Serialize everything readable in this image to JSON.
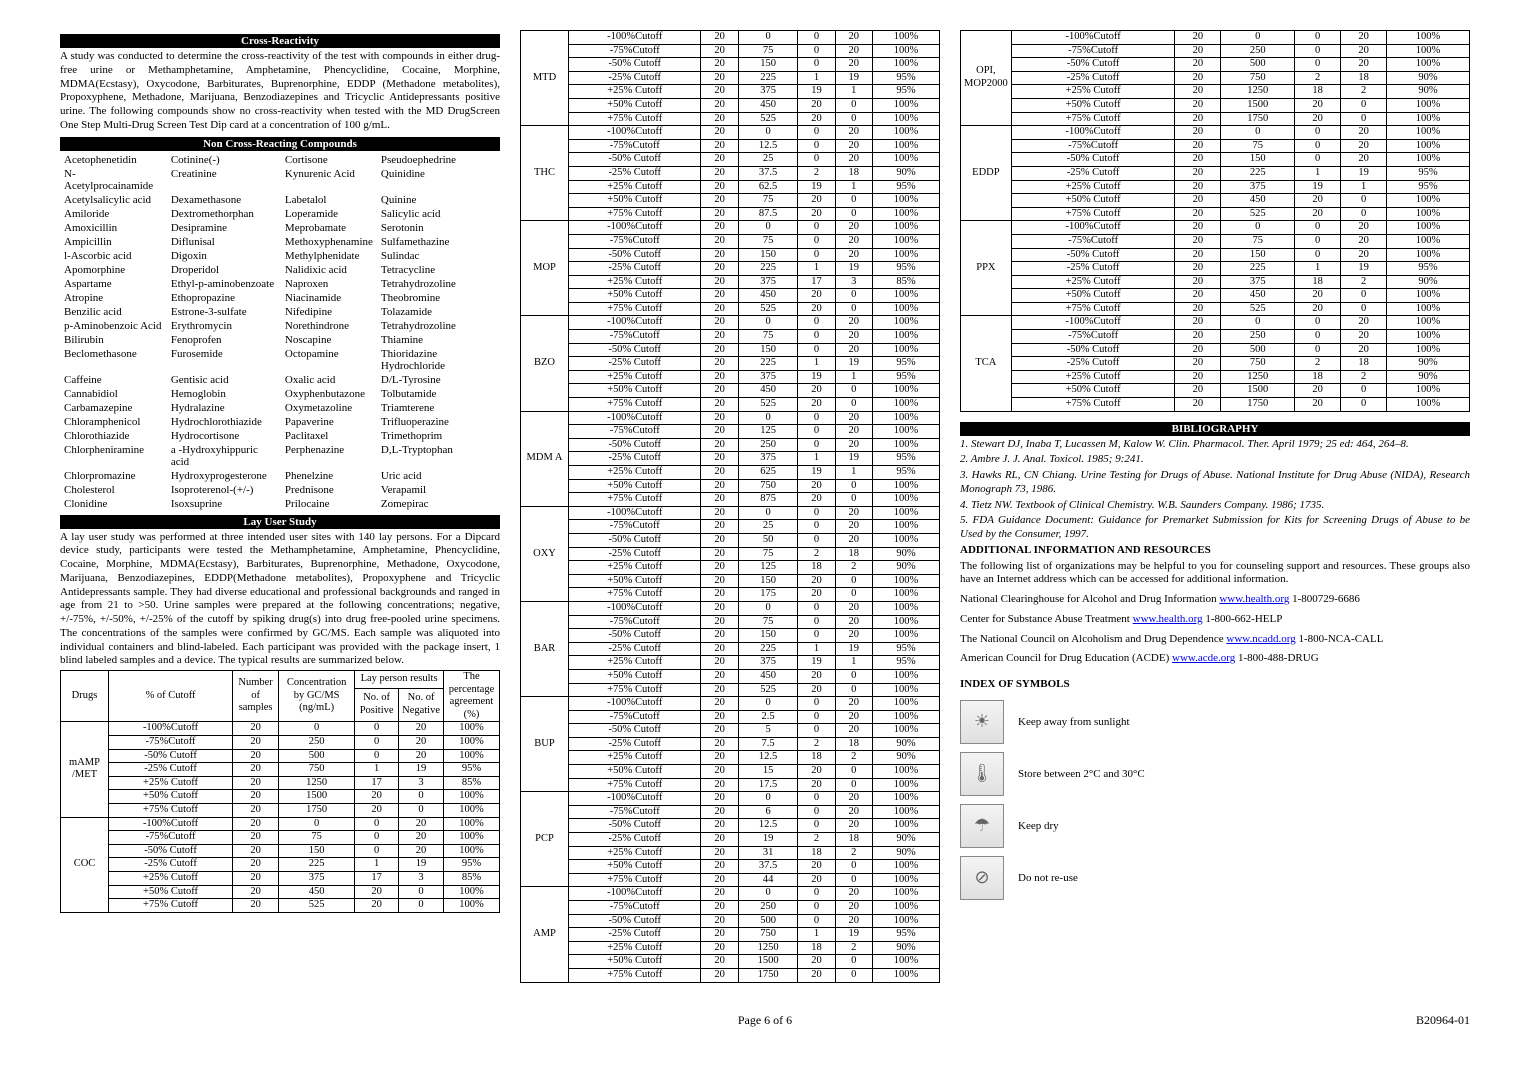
{
  "header": {
    "cross": "Cross-Reactivity",
    "cross_text": "A study was conducted to determine the cross-reactivity of the test with compounds in either drug-free urine or Methamphetamine, Amphetamine, Phencyclidine, Cocaine, Morphine, MDMA(Ecstasy), Oxycodone, Barbiturates, Buprenorphine, EDDP (Methadone metabolites), Propoxyphene, Methadone, Marijuana, Benzodiazepines and Tricyclic Antidepressants positive urine. The following compounds show no cross-reactivity when tested with the MD DrugScreen One Step Multi-Drug Screen Test Dip card at a concentration of 100 g/mL.",
    "ncr": "Non Cross-Reacting Compounds",
    "lay": "Lay User Study",
    "lay_text": "A lay user study was performed at three intended user sites with 140 lay persons. For a Dipcard device study, participants were tested the Methamphetamine, Amphetamine, Phencyclidine, Cocaine, Morphine, MDMA(Ecstasy), Barbiturates, Buprenorphine, Methadone, Oxycodone, Marijuana, Benzodiazepines, EDDP(Methadone metabolites), Propoxyphene and Tricyclic Antidepressants sample. They had diverse educational and professional backgrounds and ranged in age from 21 to >50. Urine samples were prepared at the following concentrations; negative, +/-75%, +/-50%, +/-25% of the cutoff by spiking drug(s) into drug free-pooled urine specimens.   The concentrations of the samples were confirmed by GC/MS.   Each sample was aliquoted into individual containers and blind-labeled.   Each participant was provided with the package insert, 1 blind labeled samples and a device.   The typical results are summarized below.",
    "bib": "BIBLIOGRAPHY"
  },
  "ncr_compounds": [
    [
      "Acetophenetidin",
      "Cotinine(-)",
      "Cortisone",
      "Pseudoephedrine"
    ],
    [
      "N-Acetylprocainamide",
      "Creatinine",
      "Kynurenic Acid",
      "Quinidine"
    ],
    [
      "Acetylsalicylic acid",
      "Dexamethasone",
      "Labetalol",
      "Quinine"
    ],
    [
      "Amiloride",
      "Dextromethorphan",
      "Loperamide",
      "Salicylic acid"
    ],
    [
      "Amoxicillin",
      "Desipramine",
      "Meprobamate",
      "Serotonin"
    ],
    [
      "Ampicillin",
      "Diflunisal",
      "Methoxyphenamine",
      "Sulfamethazine"
    ],
    [
      "l-Ascorbic acid",
      "Digoxin",
      "Methylphenidate",
      "Sulindac"
    ],
    [
      "Apomorphine",
      "Droperidol",
      "Nalidixic acid",
      "Tetracycline"
    ],
    [
      "Aspartame",
      "Ethyl-p-aminobenzoate",
      "Naproxen",
      "Tetrahydrozoline"
    ],
    [
      "Atropine",
      "Ethopropazine",
      "Niacinamide",
      "Theobromine"
    ],
    [
      "Benzilic acid",
      "Estrone-3-sulfate",
      "Nifedipine",
      "Tolazamide"
    ],
    [
      "p-Aminobenzoic Acid",
      "Erythromycin",
      "Norethindrone",
      "Tetrahydrozoline"
    ],
    [
      "Bilirubin",
      "Fenoprofen",
      "Noscapine",
      "Thiamine"
    ],
    [
      "Beclomethasone",
      "Furosemide",
      "Octopamine",
      "Thioridazine Hydrochloride"
    ],
    [
      "Caffeine",
      "Gentisic acid",
      "Oxalic acid",
      "D/L-Tyrosine"
    ],
    [
      "Cannabidiol",
      "Hemoglobin",
      "Oxyphenbutazone",
      "Tolbutamide"
    ],
    [
      "Carbamazepine",
      "Hydralazine",
      "Oxymetazoline",
      "Triamterene"
    ],
    [
      "Chloramphenicol",
      "Hydrochlorothiazide",
      "Papaverine",
      "Trifluoperazine"
    ],
    [
      "Chlorothiazide",
      "Hydrocortisone",
      "Paclitaxel",
      "Trimethoprim"
    ],
    [
      "Chlorpheniramine",
      "a -Hydroxyhippuric acid",
      "Perphenazine",
      "D,L-Tryptophan"
    ],
    [
      "Chlorpromazine",
      "Hydroxyprogesterone",
      "Phenelzine",
      "Uric acid"
    ],
    [
      "Cholesterol",
      "Isoproterenol-(+/-)",
      "Prednisone",
      "Verapamil"
    ],
    [
      "Clonidine",
      "Isoxsuprine",
      "Prilocaine",
      "Zomepirac"
    ]
  ],
  "table_headers": {
    "drugs": "Drugs",
    "pct": "% of Cutoff",
    "num_samples": "Number of samples",
    "conc": "Concentration by GC/MS (ng/mL)",
    "lay_results": "Lay person results",
    "pos": "No. of Positive",
    "neg": "No. of Negative",
    "agree": "The percentage agreement (%)"
  },
  "cutoff_labels": [
    "-100%Cutoff",
    "-75%Cutoff",
    "-50% Cutoff",
    "-25% Cutoff",
    "+25% Cutoff",
    "+50% Cutoff",
    "+75% Cutoff"
  ],
  "drug_blocks_col1": [
    {
      "name": "mAMP /MET",
      "rows": [
        [
          20,
          0,
          0,
          20,
          "100%"
        ],
        [
          20,
          250,
          0,
          20,
          "100%"
        ],
        [
          20,
          500,
          0,
          20,
          "100%"
        ],
        [
          20,
          750,
          1,
          19,
          "95%"
        ],
        [
          20,
          1250,
          17,
          3,
          "85%"
        ],
        [
          20,
          1500,
          20,
          0,
          "100%"
        ],
        [
          20,
          1750,
          20,
          0,
          "100%"
        ]
      ]
    },
    {
      "name": "COC",
      "rows": [
        [
          20,
          0,
          0,
          20,
          "100%"
        ],
        [
          20,
          75,
          0,
          20,
          "100%"
        ],
        [
          20,
          150,
          0,
          20,
          "100%"
        ],
        [
          20,
          225,
          1,
          19,
          "95%"
        ],
        [
          20,
          375,
          17,
          3,
          "85%"
        ],
        [
          20,
          450,
          20,
          0,
          "100%"
        ],
        [
          20,
          525,
          20,
          0,
          "100%"
        ]
      ]
    }
  ],
  "drug_blocks_col2": [
    {
      "name": "MTD",
      "rows": [
        [
          20,
          0,
          0,
          20,
          "100%"
        ],
        [
          20,
          75,
          0,
          20,
          "100%"
        ],
        [
          20,
          150,
          0,
          20,
          "100%"
        ],
        [
          20,
          225,
          1,
          19,
          "95%"
        ],
        [
          20,
          375,
          19,
          1,
          "95%"
        ],
        [
          20,
          450,
          20,
          0,
          "100%"
        ],
        [
          20,
          525,
          20,
          0,
          "100%"
        ]
      ]
    },
    {
      "name": "THC",
      "rows": [
        [
          20,
          0,
          0,
          20,
          "100%"
        ],
        [
          20,
          12.5,
          0,
          20,
          "100%"
        ],
        [
          20,
          25,
          0,
          20,
          "100%"
        ],
        [
          20,
          37.5,
          2,
          18,
          "90%"
        ],
        [
          20,
          62.5,
          19,
          1,
          "95%"
        ],
        [
          20,
          75,
          20,
          0,
          "100%"
        ],
        [
          20,
          87.5,
          20,
          0,
          "100%"
        ]
      ]
    },
    {
      "name": "MOP",
      "rows": [
        [
          20,
          0,
          0,
          20,
          "100%"
        ],
        [
          20,
          75,
          0,
          20,
          "100%"
        ],
        [
          20,
          150,
          0,
          20,
          "100%"
        ],
        [
          20,
          225,
          1,
          19,
          "95%"
        ],
        [
          20,
          375,
          17,
          3,
          "85%"
        ],
        [
          20,
          450,
          20,
          0,
          "100%"
        ],
        [
          20,
          525,
          20,
          0,
          "100%"
        ]
      ]
    },
    {
      "name": "BZO",
      "rows": [
        [
          20,
          0,
          0,
          20,
          "100%"
        ],
        [
          20,
          75,
          0,
          20,
          "100%"
        ],
        [
          20,
          150,
          0,
          20,
          "100%"
        ],
        [
          20,
          225,
          1,
          19,
          "95%"
        ],
        [
          20,
          375,
          19,
          1,
          "95%"
        ],
        [
          20,
          450,
          20,
          0,
          "100%"
        ],
        [
          20,
          525,
          20,
          0,
          "100%"
        ]
      ]
    },
    {
      "name": "MDM A",
      "rows": [
        [
          20,
          0,
          0,
          20,
          "100%"
        ],
        [
          20,
          125,
          0,
          20,
          "100%"
        ],
        [
          20,
          250,
          0,
          20,
          "100%"
        ],
        [
          20,
          375,
          1,
          19,
          "95%"
        ],
        [
          20,
          625,
          19,
          1,
          "95%"
        ],
        [
          20,
          750,
          20,
          0,
          "100%"
        ],
        [
          20,
          875,
          20,
          0,
          "100%"
        ]
      ]
    },
    {
      "name": "OXY",
      "rows": [
        [
          20,
          0,
          0,
          20,
          "100%"
        ],
        [
          20,
          25,
          0,
          20,
          "100%"
        ],
        [
          20,
          50,
          0,
          20,
          "100%"
        ],
        [
          20,
          75,
          2,
          18,
          "90%"
        ],
        [
          20,
          125,
          18,
          2,
          "90%"
        ],
        [
          20,
          150,
          20,
          0,
          "100%"
        ],
        [
          20,
          175,
          20,
          0,
          "100%"
        ]
      ]
    },
    {
      "name": "BAR",
      "rows": [
        [
          20,
          0,
          0,
          20,
          "100%"
        ],
        [
          20,
          75,
          0,
          20,
          "100%"
        ],
        [
          20,
          150,
          0,
          20,
          "100%"
        ],
        [
          20,
          225,
          1,
          19,
          "95%"
        ],
        [
          20,
          375,
          19,
          1,
          "95%"
        ],
        [
          20,
          450,
          20,
          0,
          "100%"
        ],
        [
          20,
          525,
          20,
          0,
          "100%"
        ]
      ]
    },
    {
      "name": "BUP",
      "rows": [
        [
          20,
          0,
          0,
          20,
          "100%"
        ],
        [
          20,
          2.5,
          0,
          20,
          "100%"
        ],
        [
          20,
          5,
          0,
          20,
          "100%"
        ],
        [
          20,
          7.5,
          2,
          18,
          "90%"
        ],
        [
          20,
          12.5,
          18,
          2,
          "90%"
        ],
        [
          20,
          15,
          20,
          0,
          "100%"
        ],
        [
          20,
          17.5,
          20,
          0,
          "100%"
        ]
      ]
    },
    {
      "name": "PCP",
      "rows": [
        [
          20,
          0,
          0,
          20,
          "100%"
        ],
        [
          20,
          6,
          0,
          20,
          "100%"
        ],
        [
          20,
          12.5,
          0,
          20,
          "100%"
        ],
        [
          20,
          19,
          2,
          18,
          "90%"
        ],
        [
          20,
          31,
          18,
          2,
          "90%"
        ],
        [
          20,
          37.5,
          20,
          0,
          "100%"
        ],
        [
          20,
          44,
          20,
          0,
          "100%"
        ]
      ]
    },
    {
      "name": "AMP",
      "rows": [
        [
          20,
          0,
          0,
          20,
          "100%"
        ],
        [
          20,
          250,
          0,
          20,
          "100%"
        ],
        [
          20,
          500,
          0,
          20,
          "100%"
        ],
        [
          20,
          750,
          1,
          19,
          "95%"
        ],
        [
          20,
          1250,
          18,
          2,
          "90%"
        ],
        [
          20,
          1500,
          20,
          0,
          "100%"
        ],
        [
          20,
          1750,
          20,
          0,
          "100%"
        ]
      ]
    }
  ],
  "drug_blocks_col3": [
    {
      "name": "OPI, MOP2000",
      "rows": [
        [
          20,
          0,
          0,
          20,
          "100%"
        ],
        [
          20,
          250,
          0,
          20,
          "100%"
        ],
        [
          20,
          500,
          0,
          20,
          "100%"
        ],
        [
          20,
          750,
          2,
          18,
          "90%"
        ],
        [
          20,
          1250,
          18,
          2,
          "90%"
        ],
        [
          20,
          1500,
          20,
          0,
          "100%"
        ],
        [
          20,
          1750,
          20,
          0,
          "100%"
        ]
      ]
    },
    {
      "name": "EDDP",
      "rows": [
        [
          20,
          0,
          0,
          20,
          "100%"
        ],
        [
          20,
          75,
          0,
          20,
          "100%"
        ],
        [
          20,
          150,
          0,
          20,
          "100%"
        ],
        [
          20,
          225,
          1,
          19,
          "95%"
        ],
        [
          20,
          375,
          19,
          1,
          "95%"
        ],
        [
          20,
          450,
          20,
          0,
          "100%"
        ],
        [
          20,
          525,
          20,
          0,
          "100%"
        ]
      ]
    },
    {
      "name": "PPX",
      "rows": [
        [
          20,
          0,
          0,
          20,
          "100%"
        ],
        [
          20,
          75,
          0,
          20,
          "100%"
        ],
        [
          20,
          150,
          0,
          20,
          "100%"
        ],
        [
          20,
          225,
          1,
          19,
          "95%"
        ],
        [
          20,
          375,
          18,
          2,
          "90%"
        ],
        [
          20,
          450,
          20,
          0,
          "100%"
        ],
        [
          20,
          525,
          20,
          0,
          "100%"
        ]
      ]
    },
    {
      "name": "TCA",
      "rows": [
        [
          20,
          0,
          0,
          20,
          "100%"
        ],
        [
          20,
          250,
          0,
          20,
          "100%"
        ],
        [
          20,
          500,
          0,
          20,
          "100%"
        ],
        [
          20,
          750,
          2,
          18,
          "90%"
        ],
        [
          20,
          1250,
          18,
          2,
          "90%"
        ],
        [
          20,
          1500,
          20,
          0,
          "100%"
        ],
        [
          20,
          1750,
          20,
          0,
          "100%"
        ]
      ]
    }
  ],
  "bibliography": [
    "1. Stewart DJ, Inaba T, Lucassen M, Kalow W. Clin. Pharmacol. Ther. April 1979; 25 ed: 464, 264–8.",
    "2. Ambre J. J. Anal. Toxicol. 1985; 9:241.",
    "3. Hawks RL, CN Chiang. Urine Testing for Drugs of Abuse. National Institute for Drug Abuse (NIDA), Research Monograph 73, 1986.",
    "4. Tietz NW. Textbook of Clinical Chemistry. W.B. Saunders Company. 1986; 1735.",
    "5. FDA Guidance Document: Guidance for Premarket Submission for Kits for Screening Drugs of Abuse to be Used by the Consumer, 1997."
  ],
  "addl_head": "ADDITIONAL INFORMATION AND RESOURCES",
  "addl_text": "The following list of organizations may be helpful to you for counseling support and resources. These groups also have an Internet address which can be accessed for additional information.",
  "resources": [
    {
      "text": "National Clearinghouse for Alcohol and Drug Information ",
      "link": "www.health.org",
      "tail": "   1-800729-6686"
    },
    {
      "text": "Center for Substance Abuse Treatment ",
      "link": "www.health.org",
      "tail": "   1-800-662-HELP"
    },
    {
      "text": "The National Council on Alcoholism and Drug Dependence ",
      "link": "www.ncadd.org",
      "tail": " 1-800-NCA-CALL"
    },
    {
      "text": "American Council for Drug Education (ACDE) ",
      "link": "www.acde.org",
      "tail": " 1-800-488-DRUG"
    }
  ],
  "index_head": "INDEX OF SYMBOLS",
  "symbols": [
    {
      "glyph": "☀",
      "label": "Keep away from sunlight"
    },
    {
      "glyph": "🌡",
      "label": "Store between 2°C and 30°C"
    },
    {
      "glyph": "☂",
      "label": "Keep dry"
    },
    {
      "glyph": "⊘",
      "label": "Do not re-use"
    }
  ],
  "footer": {
    "page": "Page 6 of 6",
    "code": "B20964-01"
  }
}
